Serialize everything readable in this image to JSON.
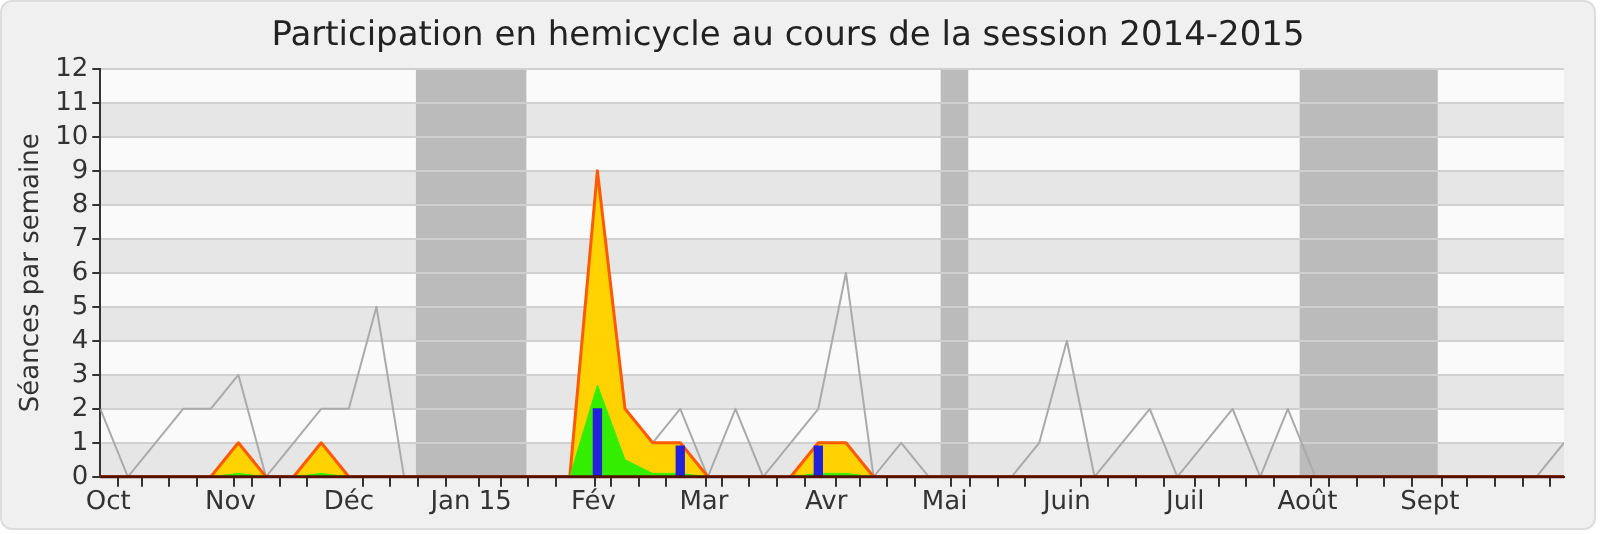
{
  "chart_data": {
    "type": "area",
    "title": "Participation en hemicycle au cours de la session 2014-2015",
    "ylabel": "Séances par semaine",
    "x": [
      "2014-09-29",
      "2014-10-06",
      "2014-10-13",
      "2014-10-20",
      "2014-10-27",
      "2014-11-03",
      "2014-11-10",
      "2014-11-17",
      "2014-11-24",
      "2014-12-01",
      "2014-12-08",
      "2014-12-15",
      "2014-12-22",
      "2014-12-29",
      "2015-01-05",
      "2015-01-12",
      "2015-01-19",
      "2015-01-26",
      "2015-02-02",
      "2015-02-09",
      "2015-02-16",
      "2015-02-23",
      "2015-03-02",
      "2015-03-09",
      "2015-03-16",
      "2015-03-23",
      "2015-03-30",
      "2015-04-06",
      "2015-04-13",
      "2015-04-20",
      "2015-04-27",
      "2015-05-04",
      "2015-05-11",
      "2015-05-18",
      "2015-05-25",
      "2015-06-01",
      "2015-06-08",
      "2015-06-15",
      "2015-06-22",
      "2015-06-29",
      "2015-07-06",
      "2015-07-13",
      "2015-07-20",
      "2015-07-27",
      "2015-08-03",
      "2015-08-10",
      "2015-08-17",
      "2015-08-24",
      "2015-08-31",
      "2015-09-07",
      "2015-09-14",
      "2015-09-21",
      "2015-09-28",
      "2015-10-05"
    ],
    "series": [
      {
        "type": "line",
        "color": "#aaaaaa",
        "values": [
          2,
          0,
          1,
          2,
          2,
          3,
          0,
          1,
          2,
          2,
          5,
          0,
          null,
          null,
          null,
          null,
          null,
          null,
          null,
          null,
          1,
          2,
          0,
          2,
          0,
          1,
          2,
          6,
          0,
          1,
          0,
          0,
          0,
          0,
          1,
          4,
          0,
          1,
          2,
          0,
          1,
          2,
          0,
          2,
          0,
          null,
          null,
          null,
          null,
          null,
          null,
          null,
          0,
          1
        ]
      },
      {
        "color": "#ffd200",
        "values": [
          0,
          0,
          0,
          0,
          0,
          1,
          0,
          0,
          1,
          0,
          0,
          0,
          0,
          0,
          0,
          0,
          0,
          0,
          9,
          2,
          1,
          1,
          0,
          0,
          0,
          0,
          1,
          1,
          0,
          0,
          0,
          0,
          0,
          0,
          0,
          0,
          0,
          0,
          0,
          0,
          0,
          0,
          0,
          0,
          0,
          0,
          0,
          0,
          0,
          0,
          0,
          0,
          0,
          0
        ]
      },
      {
        "color": "#33ee00",
        "values": [
          0,
          0,
          0,
          0,
          0,
          0.1,
          0,
          0,
          0.1,
          0,
          0,
          0,
          0,
          0,
          0,
          0,
          0,
          0,
          2.7,
          0.5,
          0.1,
          0.1,
          0,
          0,
          0,
          0,
          0.1,
          0.1,
          0,
          0,
          0,
          0,
          0,
          0,
          0,
          0,
          0,
          0,
          0,
          0,
          0,
          0,
          0,
          0,
          0,
          0,
          0,
          0,
          0,
          0,
          0,
          0,
          0,
          0
        ]
      },
      {
        "type": "bar",
        "color": "#2222dd",
        "values": [
          null,
          null,
          null,
          null,
          null,
          null,
          null,
          null,
          null,
          null,
          null,
          null,
          null,
          null,
          null,
          null,
          null,
          null,
          2,
          null,
          null,
          0.9,
          null,
          null,
          null,
          null,
          0.9,
          null,
          null,
          null,
          null,
          null,
          null,
          null,
          null,
          null,
          null,
          null,
          null,
          null,
          null,
          null,
          null,
          null,
          null,
          null,
          null,
          null,
          null,
          null,
          null,
          null,
          null,
          null
        ]
      }
    ],
    "bands": [
      {
        "axis": "x",
        "from": "2014-12-18",
        "to": "2015-01-15",
        "color": "#bbbbbb"
      },
      {
        "axis": "x",
        "from": "2015-04-30",
        "to": "2015-05-07",
        "color": "#bbbbbb"
      },
      {
        "axis": "x",
        "from": "2015-07-30",
        "to": "2015-09-03",
        "color": "#bbbbbb"
      }
    ],
    "xlim": [
      "2014-09-29",
      "2015-10-05"
    ],
    "xticks": [
      {
        "value": "2014-10-01",
        "label": "Oct"
      },
      {
        "value": "2014-11-01",
        "label": "Nov"
      },
      {
        "value": "2014-12-01",
        "label": "Déc"
      },
      {
        "value": "2015-01-01",
        "label": "Jan 15"
      },
      {
        "value": "2015-02-01",
        "label": "Fév"
      },
      {
        "value": "2015-03-01",
        "label": "Mar"
      },
      {
        "value": "2015-04-01",
        "label": "Avr"
      },
      {
        "value": "2015-05-01",
        "label": "Mai"
      },
      {
        "value": "2015-06-01",
        "label": "Juin"
      },
      {
        "value": "2015-07-01",
        "label": "Juil"
      },
      {
        "value": "2015-08-01",
        "label": "Août"
      },
      {
        "value": "2015-09-01",
        "label": "Sept"
      }
    ],
    "ylim": [
      0,
      12
    ],
    "yticks": [
      0,
      1,
      2,
      3,
      4,
      5,
      6,
      7,
      8,
      9,
      10,
      11,
      12
    ],
    "grid": "y",
    "legend": false
  }
}
